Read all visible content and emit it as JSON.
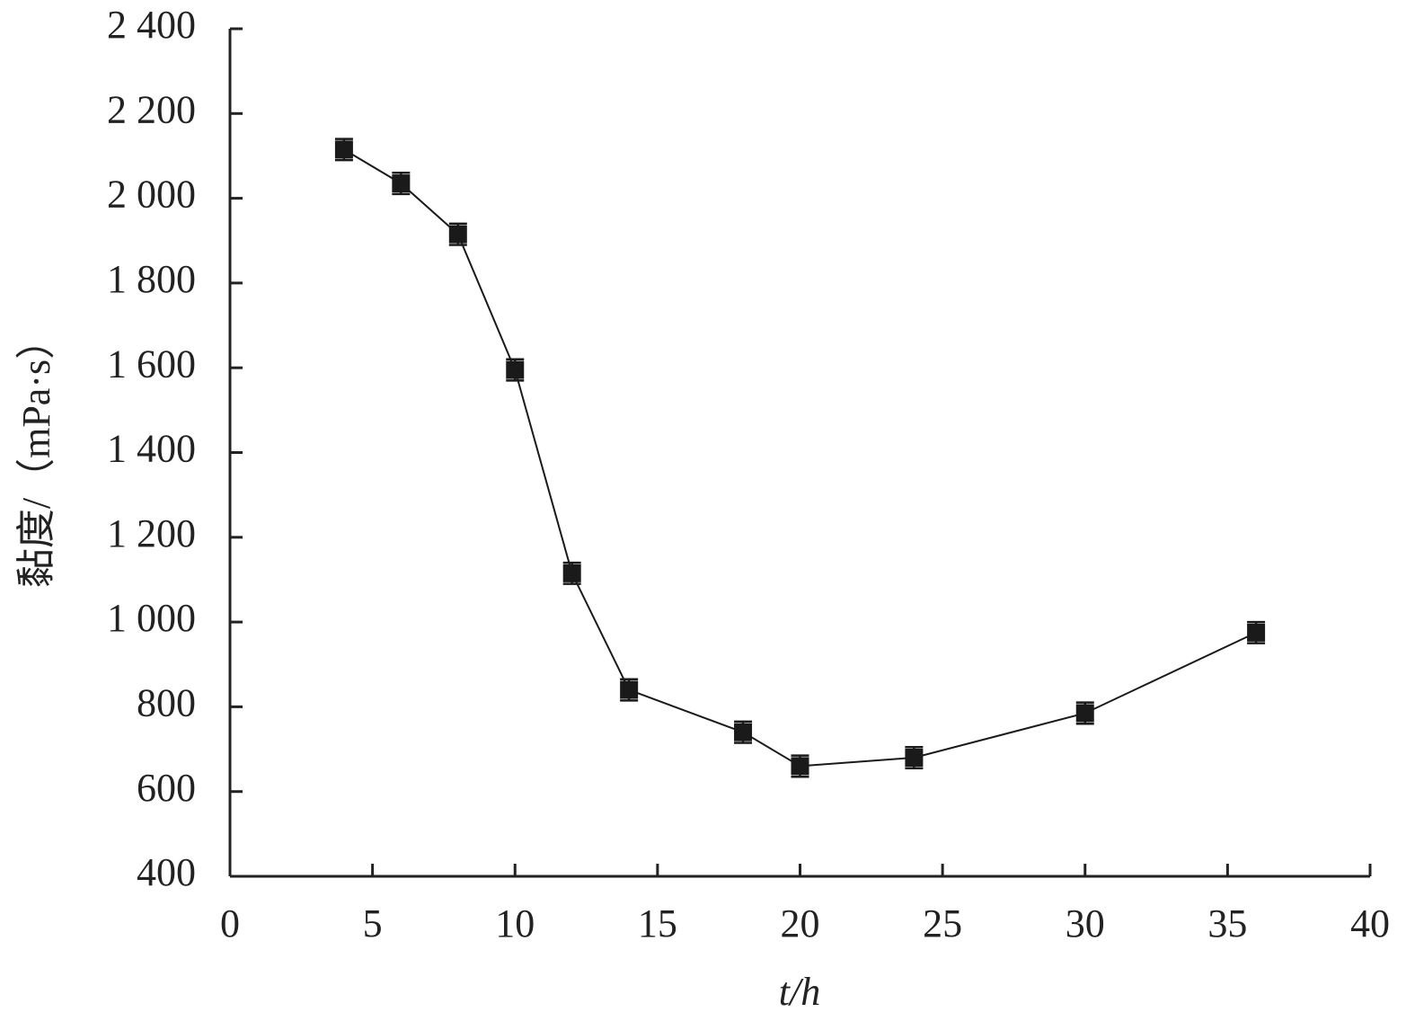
{
  "chart_data": {
    "type": "line",
    "x_label": "t/h",
    "y_label": "黏度/（mPa·s）",
    "x": [
      4,
      6,
      8,
      10,
      12,
      14,
      18,
      20,
      24,
      30,
      36
    ],
    "series": [
      {
        "color": "#1a1a1a",
        "values": [
          2115,
          2035,
          1915,
          1595,
          1115,
          840,
          740,
          660,
          680,
          785,
          975
        ],
        "errors": [
          25,
          25,
          25,
          25,
          25,
          25,
          25,
          25,
          25,
          25,
          25
        ]
      }
    ],
    "xlim": [
      0,
      40
    ],
    "xticks": [
      0,
      5,
      10,
      15,
      20,
      25,
      30,
      35,
      40
    ],
    "ylim": [
      400,
      2400
    ],
    "yticks": [
      400,
      600,
      800,
      {
        "value": 1000,
        "label": "1 000"
      },
      {
        "value": 1200,
        "label": "1 200"
      },
      {
        "value": 1400,
        "label": "1 400"
      },
      {
        "value": 1600,
        "label": "1 600"
      },
      {
        "value": 1800,
        "label": "1 800"
      },
      {
        "value": 2000,
        "label": "2 000"
      },
      {
        "value": 2200,
        "label": "2 200"
      },
      {
        "value": 2400,
        "label": "2 400"
      }
    ],
    "grid": false
  }
}
